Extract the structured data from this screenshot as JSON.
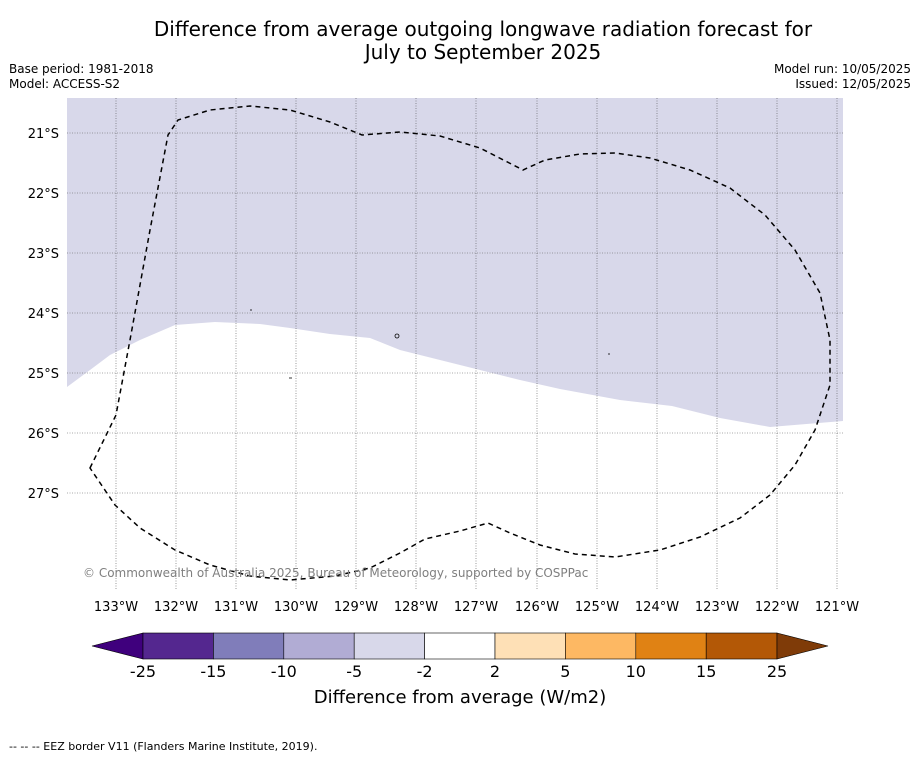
{
  "title": {
    "line1": "Difference from average outgoing longwave radiation forecast for",
    "line2": "July to September 2025"
  },
  "meta": {
    "base_period": "Base period: 1981-2018",
    "model": "Model: ACCESS-S2",
    "model_run": "Model run: 10/05/2025",
    "issued": "Issued: 12/05/2025"
  },
  "map": {
    "lat_labels": [
      "21°S",
      "22°S",
      "23°S",
      "24°S",
      "25°S",
      "26°S",
      "27°S"
    ],
    "lon_labels": [
      "133°W",
      "132°W",
      "131°W",
      "130°W",
      "129°W",
      "128°W",
      "127°W",
      "126°W",
      "125°W",
      "124°W",
      "123°W",
      "122°W",
      "121°W"
    ],
    "copyright": "© Commonwealth of Australia 2025, Bureau of Meteorology, supported by COSPPac",
    "fill_color": "#d8d8ea",
    "fill_category": "-5 to -2"
  },
  "colorbar": {
    "ticks": [
      "-25",
      "-15",
      "-10",
      "-5",
      "-2",
      "2",
      "5",
      "10",
      "15",
      "25"
    ],
    "colors": [
      "#3f007d",
      "#54278f",
      "#807dba",
      "#b1acd4",
      "#d8d8ea",
      "#ffffff",
      "#fee0b6",
      "#fdb863",
      "#e08214",
      "#b35806",
      "#7f3b08"
    ],
    "label": "Difference from average (W/m2)"
  },
  "footer": {
    "legend": "--  --  -- EEZ border V11 (Flanders Marine Institute, 2019)."
  }
}
